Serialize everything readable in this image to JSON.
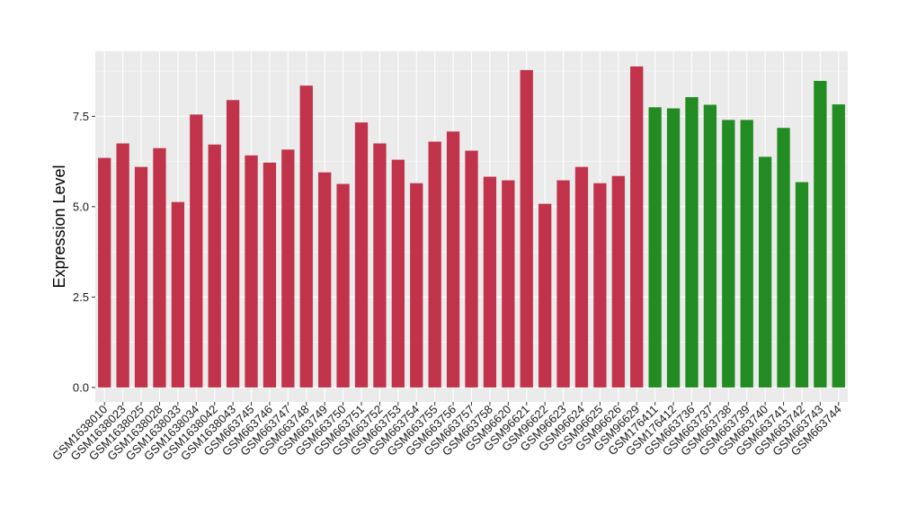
{
  "chart_data": {
    "type": "bar",
    "title": "",
    "xlabel": "",
    "ylabel": "Expression Level",
    "ylim": [
      -0.4,
      9.3
    ],
    "yticks": [
      0.0,
      2.5,
      5.0,
      7.5
    ],
    "ytick_labels": [
      "0.0",
      "2.5",
      "5.0",
      "7.5"
    ],
    "grid": true,
    "legend": "none",
    "colors": {
      "group_a": "#c1334a",
      "group_b": "#228b22",
      "panel": "#ebebeb",
      "gridline": "#ffffff"
    },
    "categories": [
      "GSM1638010",
      "GSM1638023",
      "GSM1638025",
      "GSM1638028",
      "GSM1638033",
      "GSM1638034",
      "GSM1638042",
      "GSM1638043",
      "GSM663745",
      "GSM663746",
      "GSM663747",
      "GSM663748",
      "GSM663749",
      "GSM663750",
      "GSM663751",
      "GSM663752",
      "GSM663753",
      "GSM663754",
      "GSM663755",
      "GSM663756",
      "GSM663757",
      "GSM663758",
      "GSM96620",
      "GSM96621",
      "GSM96622",
      "GSM96623",
      "GSM96624",
      "GSM96625",
      "GSM96626",
      "GSM96629",
      "GSM176411",
      "GSM176412",
      "GSM663736",
      "GSM663737",
      "GSM663738",
      "GSM663739",
      "GSM663740",
      "GSM663741",
      "GSM663742",
      "GSM663743",
      "GSM663744"
    ],
    "values": [
      6.35,
      6.75,
      6.1,
      6.62,
      5.13,
      7.55,
      6.72,
      7.95,
      6.42,
      6.22,
      6.58,
      8.35,
      5.95,
      5.63,
      7.33,
      6.75,
      6.3,
      5.65,
      6.8,
      7.08,
      6.55,
      5.83,
      5.73,
      8.78,
      5.08,
      5.73,
      6.1,
      5.65,
      5.85,
      8.88,
      7.75,
      7.72,
      8.03,
      7.82,
      7.4,
      7.4,
      6.38,
      7.18,
      5.68,
      8.48,
      7.83
    ],
    "groups": [
      "a",
      "a",
      "a",
      "a",
      "a",
      "a",
      "a",
      "a",
      "a",
      "a",
      "a",
      "a",
      "a",
      "a",
      "a",
      "a",
      "a",
      "a",
      "a",
      "a",
      "a",
      "a",
      "a",
      "a",
      "a",
      "a",
      "a",
      "a",
      "a",
      "a",
      "b",
      "b",
      "b",
      "b",
      "b",
      "b",
      "b",
      "b",
      "b",
      "b",
      "b"
    ]
  }
}
